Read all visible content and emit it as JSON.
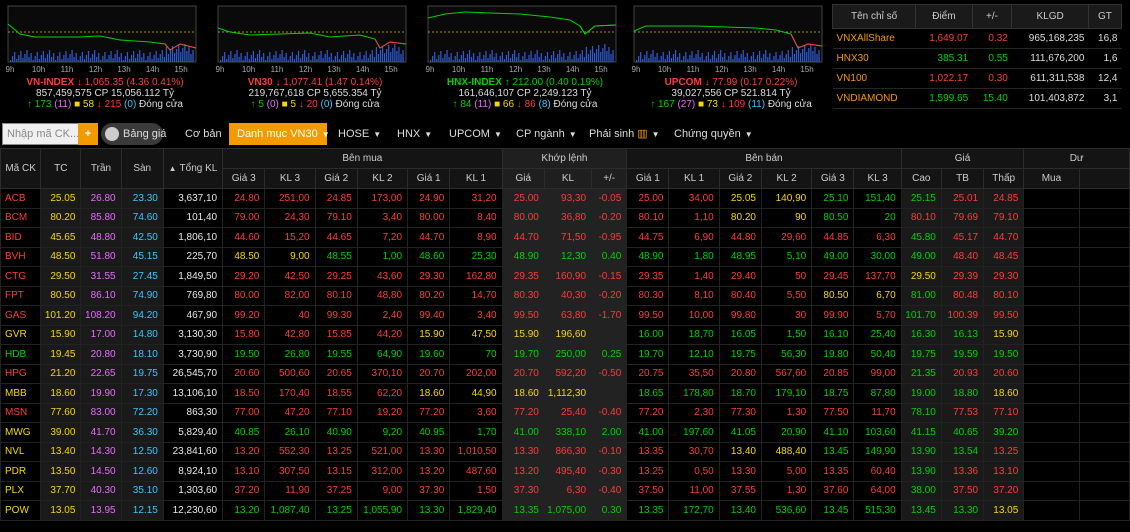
{
  "indices": [
    {
      "name": "VN-INDEX",
      "arrow": "↓",
      "value": "1,065.35",
      "change": "(4.36 0.41%)",
      "vol": "857,459,575",
      "cp_label": "CP",
      "cp": "15,056.112",
      "unit": "Tỷ",
      "up": "173",
      "ceil": "(11)",
      "ref": "58",
      "down": "215",
      "floor": "(0)",
      "status": "Đóng cửa",
      "color": "down",
      "times": [
        "9h",
        "10h",
        "11h",
        "12h",
        "13h",
        "14h",
        "15h"
      ]
    },
    {
      "name": "VN30",
      "arrow": "↓",
      "value": "1,077.41",
      "change": "(1.47 0.14%)",
      "vol": "219,767,618",
      "cp_label": "CP",
      "cp": "5,655.354",
      "unit": "Tỷ",
      "up": "5",
      "ceil": "(0)",
      "ref": "5",
      "down": "20",
      "floor": "(0)",
      "status": "Đóng cửa",
      "color": "down",
      "times": [
        "9h",
        "10h",
        "11h",
        "12h",
        "13h",
        "14h",
        "15h"
      ]
    },
    {
      "name": "HNX-INDEX",
      "arrow": "↑",
      "value": "212.00",
      "change": "(0.40 0.19%)",
      "vol": "161,646,107",
      "cp_label": "CP",
      "cp": "2,249.123",
      "unit": "Tỷ",
      "up": "84",
      "ceil": "(11)",
      "ref": "66",
      "down": "86",
      "floor": "(8)",
      "status": "Đóng cửa",
      "color": "up",
      "times": [
        "9h",
        "10h",
        "11h",
        "12h",
        "13h",
        "14h",
        "15h"
      ]
    },
    {
      "name": "UPCOM",
      "arrow": "↓",
      "value": "77.99",
      "change": "(0.17 0.22%)",
      "vol": "39,027,556",
      "cp_label": "CP",
      "cp": "521.814",
      "unit": "Tỷ",
      "up": "167",
      "ceil": "(27)",
      "ref": "73",
      "down": "109",
      "floor": "(11)",
      "status": "Đóng cửa",
      "color": "down",
      "times": [
        "9h",
        "10h",
        "11h",
        "12h",
        "13h",
        "14h",
        "15h"
      ]
    }
  ],
  "summary": {
    "headers": [
      "Tên chỉ số",
      "Điểm",
      "+/-",
      "KLGD",
      "GT"
    ],
    "rows": [
      {
        "name": "VNXAllShare",
        "point": "1,649.07",
        "chg": "0.32",
        "vol": "965,168,235",
        "gt": "16,8",
        "color": "down"
      },
      {
        "name": "HNX30",
        "point": "385.31",
        "chg": "0.55",
        "vol": "111,676,200",
        "gt": "1,6",
        "color": "up"
      },
      {
        "name": "VN100",
        "point": "1,022.17",
        "chg": "0.30",
        "vol": "611,311,538",
        "gt": "12,4",
        "color": "down"
      },
      {
        "name": "VNDIAMOND",
        "point": "1,599.65",
        "chg": "15.40",
        "vol": "101,403,872",
        "gt": "3,1",
        "color": "up"
      }
    ]
  },
  "toolbar": {
    "search_placeholder": "Nhập mã CK...",
    "plus": "+",
    "toggle_label": "Bảng giá",
    "co_ban": "Cơ bản",
    "danh_muc": "Danh mục VN30",
    "hose": "HOSE",
    "hnx": "HNX",
    "upcom": "UPCOM",
    "cp_nganh": "CP ngành",
    "phai_sinh": "Phái sinh",
    "chung_quyen": "Chứng quyền"
  },
  "table": {
    "group_headers": {
      "ben_mua": "Bên mua",
      "khop_lenh": "Khớp lệnh",
      "ben_ban": "Bên bán",
      "gia": "Giá",
      "du": "Dư"
    },
    "headers": {
      "ma_ck": "Mã CK",
      "tc": "TC",
      "tran": "Trần",
      "san": "Sàn",
      "tong_kl": "Tổng KL",
      "sort": "▲",
      "gia3": "Giá 3",
      "kl3": "KL 3",
      "gia2": "Giá 2",
      "kl2": "KL 2",
      "gia1": "Giá 1",
      "kl1": "KL 1",
      "k_gia": "Giá",
      "k_kl": "KL",
      "k_pm": "+/-",
      "s_gia1": "Giá 1",
      "s_kl1": "KL 1",
      "s_gia2": "Giá 2",
      "s_kl2": "KL 2",
      "s_gia3": "Giá 3",
      "s_kl3": "KL 3",
      "cao": "Cao",
      "tb": "TB",
      "thap": "Thấp",
      "mua": "Mua"
    },
    "rows": [
      {
        "c": [
          "ACB",
          "25.05",
          "26.80",
          "23.30",
          "3,637,10",
          "24.80",
          "251,00",
          "24.85",
          "173,00",
          "24.90",
          "31,20",
          "25.00",
          "93,30",
          "-0.05",
          "25.00",
          "34,00",
          "25.05",
          "140,90",
          "25.10",
          "151,40",
          "25.15",
          "25.01",
          "24.85"
        ],
        "k": [
          "d",
          "r",
          "ce",
          "f",
          "w",
          "d",
          "d",
          "d",
          "d",
          "d",
          "d",
          "d",
          "d",
          "d",
          "d",
          "d",
          "r",
          "r",
          "u",
          "u",
          "u",
          "d",
          "d"
        ]
      },
      {
        "c": [
          "BCM",
          "80.20",
          "85.80",
          "74.60",
          "101,40",
          "79.00",
          "24,30",
          "79.10",
          "3,40",
          "80.00",
          "8,40",
          "80.00",
          "36,80",
          "-0.20",
          "80.10",
          "1,10",
          "80.20",
          "90",
          "80.50",
          "20",
          "80.10",
          "79.69",
          "79.10"
        ],
        "k": [
          "d",
          "r",
          "ce",
          "f",
          "w",
          "d",
          "d",
          "d",
          "d",
          "d",
          "d",
          "d",
          "d",
          "d",
          "d",
          "d",
          "r",
          "r",
          "u",
          "u",
          "d",
          "d",
          "d"
        ]
      },
      {
        "c": [
          "BID",
          "45.65",
          "48.80",
          "42.50",
          "1,806,10",
          "44.60",
          "15,20",
          "44.65",
          "7,20",
          "44.70",
          "8,90",
          "44.70",
          "71,50",
          "-0.95",
          "44.75",
          "6,90",
          "44.80",
          "29,60",
          "44.85",
          "6,30",
          "45.80",
          "45.17",
          "44.70"
        ],
        "k": [
          "d",
          "r",
          "ce",
          "f",
          "w",
          "d",
          "d",
          "d",
          "d",
          "d",
          "d",
          "d",
          "d",
          "d",
          "d",
          "d",
          "d",
          "d",
          "d",
          "d",
          "u",
          "d",
          "d"
        ]
      },
      {
        "c": [
          "BVH",
          "48.50",
          "51.80",
          "45.15",
          "225,70",
          "48.50",
          "9,00",
          "48.55",
          "1,00",
          "48.60",
          "25,30",
          "48.90",
          "12,30",
          "0.40",
          "48.90",
          "1,80",
          "48.95",
          "5,10",
          "49.00",
          "30,00",
          "49.00",
          "48.40",
          "48.45"
        ],
        "k": [
          "d",
          "r",
          "ce",
          "f",
          "w",
          "r",
          "r",
          "u",
          "u",
          "u",
          "u",
          "u",
          "u",
          "u",
          "u",
          "u",
          "u",
          "u",
          "u",
          "u",
          "u",
          "d",
          "d"
        ]
      },
      {
        "c": [
          "CTG",
          "29.50",
          "31.55",
          "27.45",
          "1,849,50",
          "29.20",
          "42,50",
          "29.25",
          "43,60",
          "29.30",
          "162,80",
          "29.35",
          "160,90",
          "-0.15",
          "29.35",
          "1,40",
          "29.40",
          "50",
          "29.45",
          "137,70",
          "29.50",
          "29.39",
          "29.30"
        ],
        "k": [
          "d",
          "r",
          "ce",
          "f",
          "w",
          "d",
          "d",
          "d",
          "d",
          "d",
          "d",
          "d",
          "d",
          "d",
          "d",
          "d",
          "d",
          "d",
          "d",
          "d",
          "r",
          "d",
          "d"
        ]
      },
      {
        "c": [
          "FPT",
          "80.50",
          "86.10",
          "74.90",
          "769,80",
          "80.00",
          "82,00",
          "80.10",
          "48,80",
          "80.20",
          "14,70",
          "80.30",
          "40,30",
          "-0.20",
          "80.30",
          "8,10",
          "80.40",
          "5,50",
          "80.50",
          "6,70",
          "81.00",
          "80.48",
          "80.10"
        ],
        "k": [
          "d",
          "r",
          "ce",
          "f",
          "w",
          "d",
          "d",
          "d",
          "d",
          "d",
          "d",
          "d",
          "d",
          "d",
          "d",
          "d",
          "d",
          "d",
          "r",
          "r",
          "u",
          "d",
          "d"
        ]
      },
      {
        "c": [
          "GAS",
          "101.20",
          "108.20",
          "94.20",
          "467,90",
          "99.20",
          "40",
          "99.30",
          "2,40",
          "99.40",
          "3,40",
          "99.50",
          "63,80",
          "-1.70",
          "99.50",
          "10,00",
          "99.80",
          "30",
          "99.90",
          "5,70",
          "101.70",
          "100.39",
          "99.50"
        ],
        "k": [
          "d",
          "r",
          "ce",
          "f",
          "w",
          "d",
          "d",
          "d",
          "d",
          "d",
          "d",
          "d",
          "d",
          "d",
          "d",
          "d",
          "d",
          "d",
          "d",
          "d",
          "u",
          "d",
          "d"
        ]
      },
      {
        "c": [
          "GVR",
          "15.90",
          "17.00",
          "14.80",
          "3,130,30",
          "15.80",
          "42,80",
          "15.85",
          "44,20",
          "15.90",
          "47,50",
          "15.90",
          "196,60",
          "",
          "16.00",
          "18,70",
          "16.05",
          "1,50",
          "16.10",
          "25,40",
          "16.30",
          "16.13",
          "15.90"
        ],
        "k": [
          "r",
          "r",
          "ce",
          "f",
          "w",
          "d",
          "d",
          "d",
          "d",
          "r",
          "r",
          "r",
          "r",
          "r",
          "u",
          "u",
          "u",
          "u",
          "u",
          "u",
          "u",
          "u",
          "r"
        ]
      },
      {
        "c": [
          "HDB",
          "19.45",
          "20.80",
          "18.10",
          "3,730,90",
          "19.50",
          "26,80",
          "19.55",
          "64,90",
          "19.60",
          "70",
          "19.70",
          "250,00",
          "0.25",
          "19.70",
          "12,10",
          "19.75",
          "56,30",
          "19.80",
          "50,40",
          "19.75",
          "19.59",
          "19.50"
        ],
        "k": [
          "u",
          "r",
          "ce",
          "f",
          "w",
          "u",
          "u",
          "u",
          "u",
          "u",
          "u",
          "u",
          "u",
          "u",
          "u",
          "u",
          "u",
          "u",
          "u",
          "u",
          "u",
          "u",
          "u"
        ]
      },
      {
        "c": [
          "HPG",
          "21.20",
          "22.65",
          "19.75",
          "26,545,70",
          "20.60",
          "500,60",
          "20.65",
          "370,10",
          "20.70",
          "202,00",
          "20.70",
          "592,20",
          "-0.50",
          "20.75",
          "35,50",
          "20.80",
          "567,60",
          "20.85",
          "99,00",
          "21.35",
          "20.93",
          "20.60"
        ],
        "k": [
          "d",
          "r",
          "ce",
          "f",
          "w",
          "d",
          "d",
          "d",
          "d",
          "d",
          "d",
          "d",
          "d",
          "d",
          "d",
          "d",
          "d",
          "d",
          "d",
          "d",
          "u",
          "d",
          "d"
        ]
      },
      {
        "c": [
          "MBB",
          "18.60",
          "19.90",
          "17.30",
          "13,106,10",
          "18.50",
          "170,40",
          "18.55",
          "62,20",
          "18.60",
          "44,90",
          "18.60",
          "1,112,30",
          "",
          "18.65",
          "178,80",
          "18.70",
          "179,10",
          "18.75",
          "87,80",
          "19.00",
          "18.80",
          "18.60"
        ],
        "k": [
          "r",
          "r",
          "ce",
          "f",
          "w",
          "d",
          "d",
          "d",
          "d",
          "r",
          "r",
          "r",
          "r",
          "r",
          "u",
          "u",
          "u",
          "u",
          "u",
          "u",
          "u",
          "u",
          "r"
        ]
      },
      {
        "c": [
          "MSN",
          "77.60",
          "83.00",
          "72.20",
          "863,30",
          "77.00",
          "47,20",
          "77.10",
          "19,20",
          "77.20",
          "3,60",
          "77.20",
          "25,40",
          "-0.40",
          "77.20",
          "2,30",
          "77.30",
          "1,30",
          "77.50",
          "11,70",
          "78.10",
          "77.53",
          "77.10"
        ],
        "k": [
          "d",
          "r",
          "ce",
          "f",
          "w",
          "d",
          "d",
          "d",
          "d",
          "d",
          "d",
          "d",
          "d",
          "d",
          "d",
          "d",
          "d",
          "d",
          "d",
          "d",
          "u",
          "d",
          "d"
        ]
      },
      {
        "c": [
          "MWG",
          "39.00",
          "41.70",
          "36.30",
          "5,829,40",
          "40.85",
          "26,10",
          "40.90",
          "9,20",
          "40.95",
          "1,70",
          "41.00",
          "338,10",
          "2.00",
          "41.00",
          "197,60",
          "41.05",
          "20,90",
          "41.10",
          "103,60",
          "41.15",
          "40.65",
          "39.20"
        ],
        "k": [
          "r",
          "r",
          "ce",
          "f",
          "w",
          "u",
          "u",
          "u",
          "u",
          "u",
          "u",
          "u",
          "u",
          "u",
          "u",
          "u",
          "u",
          "u",
          "u",
          "u",
          "u",
          "u",
          "u"
        ]
      },
      {
        "c": [
          "NVL",
          "13.40",
          "14.30",
          "12.50",
          "23,841,60",
          "13.20",
          "552,30",
          "13.25",
          "521,00",
          "13.30",
          "1,010,50",
          "13.30",
          "866,30",
          "-0.10",
          "13.35",
          "30,70",
          "13.40",
          "488,40",
          "13.45",
          "149,90",
          "13.90",
          "13.54",
          "13.25"
        ],
        "k": [
          "r",
          "r",
          "ce",
          "f",
          "w",
          "d",
          "d",
          "d",
          "d",
          "d",
          "d",
          "d",
          "d",
          "d",
          "d",
          "d",
          "r",
          "r",
          "u",
          "u",
          "u",
          "u",
          "d"
        ]
      },
      {
        "c": [
          "PDR",
          "13.50",
          "14.50",
          "12.60",
          "8,924,10",
          "13.10",
          "307,50",
          "13.15",
          "312,00",
          "13.20",
          "487,60",
          "13.20",
          "495,40",
          "-0.30",
          "13.25",
          "0,50",
          "13.30",
          "5,00",
          "13.35",
          "60,40",
          "13.90",
          "13.36",
          "13.10"
        ],
        "k": [
          "r",
          "r",
          "ce",
          "f",
          "w",
          "d",
          "d",
          "d",
          "d",
          "d",
          "d",
          "d",
          "d",
          "d",
          "d",
          "d",
          "d",
          "d",
          "d",
          "d",
          "u",
          "d",
          "d"
        ]
      },
      {
        "c": [
          "PLX",
          "37.70",
          "40.30",
          "35.10",
          "1,303,60",
          "37.20",
          "11,90",
          "37.25",
          "9,00",
          "37.30",
          "1,50",
          "37.30",
          "6,30",
          "-0.40",
          "37.50",
          "11,00",
          "37.55",
          "1,30",
          "37.60",
          "64,00",
          "38.00",
          "37.50",
          "37.20"
        ],
        "k": [
          "r",
          "r",
          "ce",
          "f",
          "w",
          "d",
          "d",
          "d",
          "d",
          "d",
          "d",
          "d",
          "d",
          "d",
          "d",
          "d",
          "d",
          "d",
          "d",
          "d",
          "u",
          "d",
          "d"
        ]
      },
      {
        "c": [
          "POW",
          "13.05",
          "13.95",
          "12.15",
          "12,230,60",
          "13.20",
          "1,087,40",
          "13.25",
          "1,055,90",
          "13.30",
          "1,829,40",
          "13.35",
          "1,075,00",
          "0.30",
          "13.35",
          "172,70",
          "13.40",
          "536,60",
          "13.45",
          "515,30",
          "13.45",
          "13.30",
          "13.05"
        ],
        "k": [
          "r",
          "r",
          "ce",
          "f",
          "w",
          "u",
          "u",
          "u",
          "u",
          "u",
          "u",
          "u",
          "u",
          "u",
          "u",
          "u",
          "u",
          "u",
          "u",
          "u",
          "u",
          "u",
          "r"
        ]
      }
    ]
  },
  "colors": {
    "up": "#00d200",
    "down": "#ff3b3b",
    "ref": "#f5d800",
    "ceil": "#e86bff",
    "floor": "#38c8ff",
    "accent": "#f29a00"
  }
}
